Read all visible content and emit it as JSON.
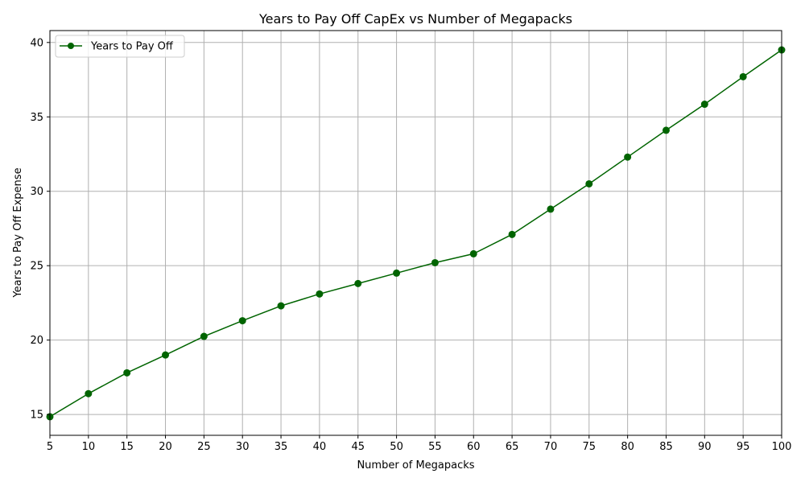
{
  "chart_data": {
    "type": "line",
    "title": "Years to Pay Off CapEx vs Number of Megapacks",
    "xlabel": "Number of Megapacks",
    "ylabel": "Years to Pay Off Expense",
    "xlim": [
      5,
      100
    ],
    "ylim": [
      13.6,
      40.8
    ],
    "xticks": [
      5,
      10,
      15,
      20,
      25,
      30,
      35,
      40,
      45,
      50,
      55,
      60,
      65,
      70,
      75,
      80,
      85,
      90,
      95,
      100
    ],
    "yticks": [
      15,
      20,
      25,
      30,
      35,
      40
    ],
    "grid": true,
    "legend_position": "top-left",
    "series": [
      {
        "name": "Years to Pay Off",
        "color": "#006400",
        "marker": "circle",
        "x": [
          5,
          10,
          15,
          20,
          25,
          30,
          35,
          40,
          45,
          50,
          55,
          60,
          65,
          70,
          75,
          80,
          85,
          90,
          95,
          100
        ],
        "y": [
          14.85,
          16.4,
          17.8,
          19.0,
          20.25,
          21.3,
          22.3,
          23.1,
          23.8,
          24.5,
          25.2,
          25.8,
          27.1,
          28.8,
          30.5,
          32.3,
          34.1,
          35.85,
          37.7,
          39.5
        ]
      }
    ]
  }
}
